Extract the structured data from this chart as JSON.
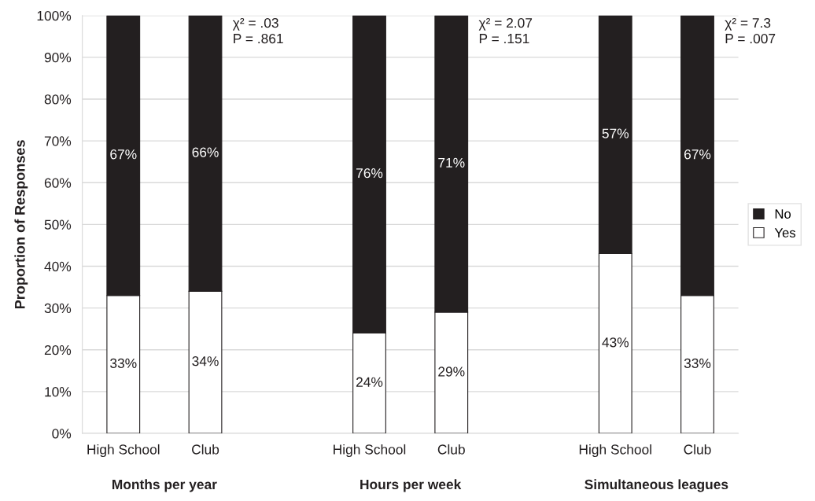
{
  "chart_data": {
    "type": "bar",
    "stacked": true,
    "ylabel": "Proportion of Responses",
    "categories": [
      "High School",
      "Club",
      null,
      "High School",
      "Club",
      null,
      "High School",
      "Club"
    ],
    "series": [
      {
        "name": "Yes",
        "color": "#ffffff",
        "values": [
          33,
          34,
          null,
          24,
          29,
          null,
          43,
          33
        ],
        "value_labels": [
          "33%",
          "34%",
          null,
          "24%",
          "29%",
          null,
          "43%",
          "33%"
        ]
      },
      {
        "name": "No",
        "color": "#231f20",
        "values": [
          67,
          66,
          null,
          76,
          71,
          null,
          57,
          67
        ],
        "value_labels": [
          "67%",
          "66%",
          null,
          "76%",
          "71%",
          null,
          "57%",
          "67%"
        ]
      }
    ],
    "ylim": [
      0,
      100
    ],
    "yticks": [
      {
        "value": 0,
        "label": "0%"
      },
      {
        "value": 10,
        "label": "10%"
      },
      {
        "value": 20,
        "label": "20%"
      },
      {
        "value": 30,
        "label": "30%"
      },
      {
        "value": 40,
        "label": "40%"
      },
      {
        "value": 50,
        "label": "50%"
      },
      {
        "value": 60,
        "label": "60%"
      },
      {
        "value": 70,
        "label": "70%"
      },
      {
        "value": 80,
        "label": "80%"
      },
      {
        "value": 90,
        "label": "90%"
      },
      {
        "value": 100,
        "label": "100%"
      }
    ],
    "grid": "y",
    "legend": "right",
    "annotations": [
      "Months per year",
      "Hours per week",
      "Simultaneous leagues",
      "χ² = .03\nP = .861",
      "χ² = 2.07\nP = .151",
      "χ² = 7.3\nP = .007"
    ]
  }
}
